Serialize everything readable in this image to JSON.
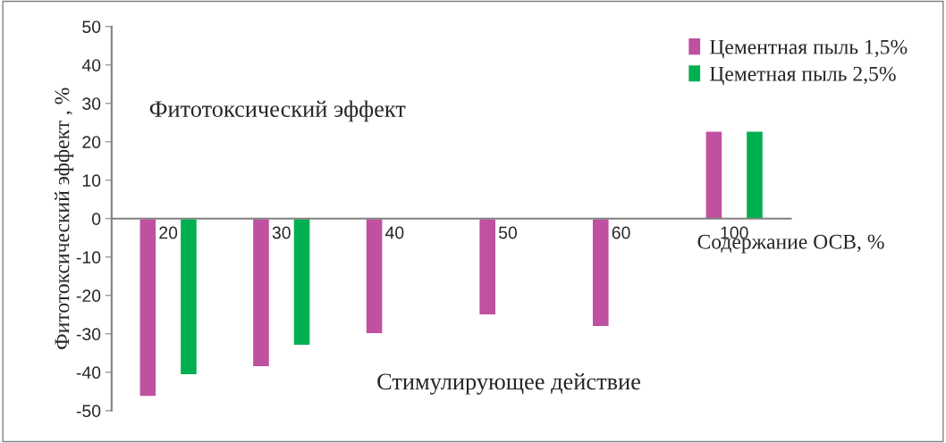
{
  "chart_data": {
    "type": "bar",
    "categories": [
      "20",
      "30",
      "40",
      "50",
      "60",
      "100"
    ],
    "series": [
      {
        "name": "Цементная пыль 1,5%",
        "color": "#c050a0",
        "values": [
          -46.3,
          -38.6,
          -30,
          -25.1,
          -28.1,
          22.8
        ]
      },
      {
        "name": "Цеметная пыль 2,5%",
        "color": "#00b050",
        "values": [
          -40.7,
          -33,
          null,
          null,
          null,
          22.8
        ]
      }
    ],
    "xlabel": "Содержание ОСВ, %",
    "ylabel": "Фитотоксический эффект , %",
    "annotations": [
      "Фитотоксический эффект",
      "Стимулирующее действие"
    ],
    "ylim": [
      -50,
      50
    ],
    "yticks": [
      -50,
      -40,
      -30,
      -20,
      -10,
      0,
      10,
      20,
      30,
      40,
      50
    ],
    "grid": false,
    "legend": "top right"
  }
}
